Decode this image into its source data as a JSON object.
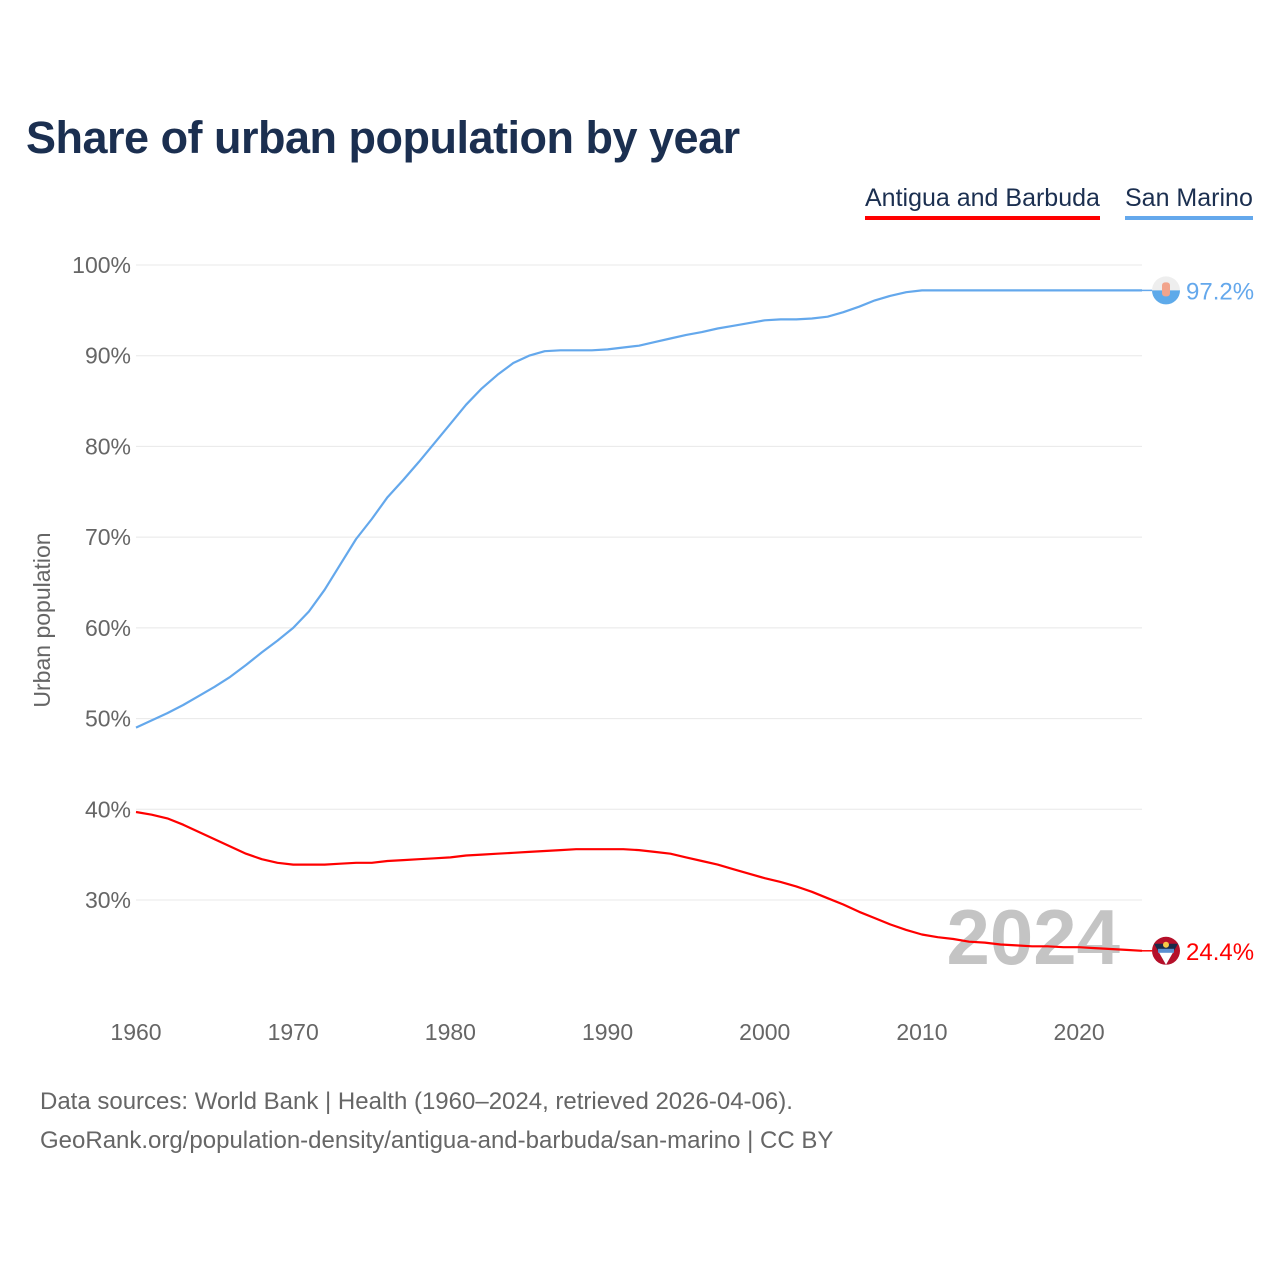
{
  "chart_data": {
    "type": "line",
    "title": "Share of urban population by year",
    "ylabel": "Urban population",
    "xlabel": "",
    "ylim": [
      20,
      100
    ],
    "xlim": [
      1960,
      2024
    ],
    "yticks": [
      30,
      40,
      50,
      60,
      70,
      80,
      90,
      100
    ],
    "ytick_labels": [
      "30%",
      "40%",
      "50%",
      "60%",
      "70%",
      "80%",
      "90%",
      "100%"
    ],
    "xticks": [
      1960,
      1970,
      1980,
      1990,
      2000,
      2010,
      2020
    ],
    "xtick_labels": [
      "1960",
      "1970",
      "1980",
      "1990",
      "2000",
      "2010",
      "2020"
    ],
    "grid": true,
    "legend_position": "top-right",
    "year_watermark": "2024",
    "x_start": 1960,
    "series": [
      {
        "name": "Antigua and Barbuda",
        "color": "#ff0000",
        "end_label": "24.4%",
        "flag_icon": "antigua-and-barbuda-flag-icon",
        "values": [
          39.7,
          39.4,
          39.0,
          38.3,
          37.5,
          36.7,
          35.9,
          35.1,
          34.5,
          34.1,
          33.9,
          33.9,
          33.9,
          34.0,
          34.1,
          34.1,
          34.3,
          34.4,
          34.5,
          34.6,
          34.7,
          34.9,
          35.0,
          35.1,
          35.2,
          35.3,
          35.4,
          35.5,
          35.6,
          35.6,
          35.6,
          35.6,
          35.5,
          35.3,
          35.1,
          34.7,
          34.3,
          33.9,
          33.4,
          32.9,
          32.4,
          32.0,
          31.5,
          30.9,
          30.2,
          29.5,
          28.7,
          28.0,
          27.3,
          26.7,
          26.2,
          25.9,
          25.7,
          25.4,
          25.3,
          25.1,
          25.0,
          24.9,
          24.9,
          24.8,
          24.8,
          24.7,
          24.6,
          24.5,
          24.4
        ]
      },
      {
        "name": "San Marino",
        "color": "#64a8ec",
        "end_label": "97.2%",
        "flag_icon": "san-marino-flag-icon",
        "values": [
          49.0,
          49.8,
          50.6,
          51.5,
          52.5,
          53.5,
          54.6,
          55.9,
          57.3,
          58.6,
          60.0,
          61.8,
          64.2,
          67.0,
          69.8,
          72.0,
          74.4,
          76.3,
          78.3,
          80.4,
          82.5,
          84.6,
          86.4,
          87.9,
          89.2,
          90.0,
          90.5,
          90.6,
          90.6,
          90.6,
          90.7,
          90.9,
          91.1,
          91.5,
          91.9,
          92.3,
          92.6,
          93.0,
          93.3,
          93.6,
          93.9,
          94.0,
          94.0,
          94.1,
          94.3,
          94.8,
          95.4,
          96.1,
          96.6,
          97.0,
          97.2,
          97.2,
          97.2,
          97.2,
          97.2,
          97.2,
          97.2,
          97.2,
          97.2,
          97.2,
          97.2,
          97.2,
          97.2,
          97.2,
          97.2
        ]
      }
    ]
  },
  "footer": {
    "sources": "Data sources: World Bank | Health (1960–2024, retrieved 2026-04-06).",
    "credit": "GeoRank.org/population-density/antigua-and-barbuda/san-marino | CC BY"
  }
}
